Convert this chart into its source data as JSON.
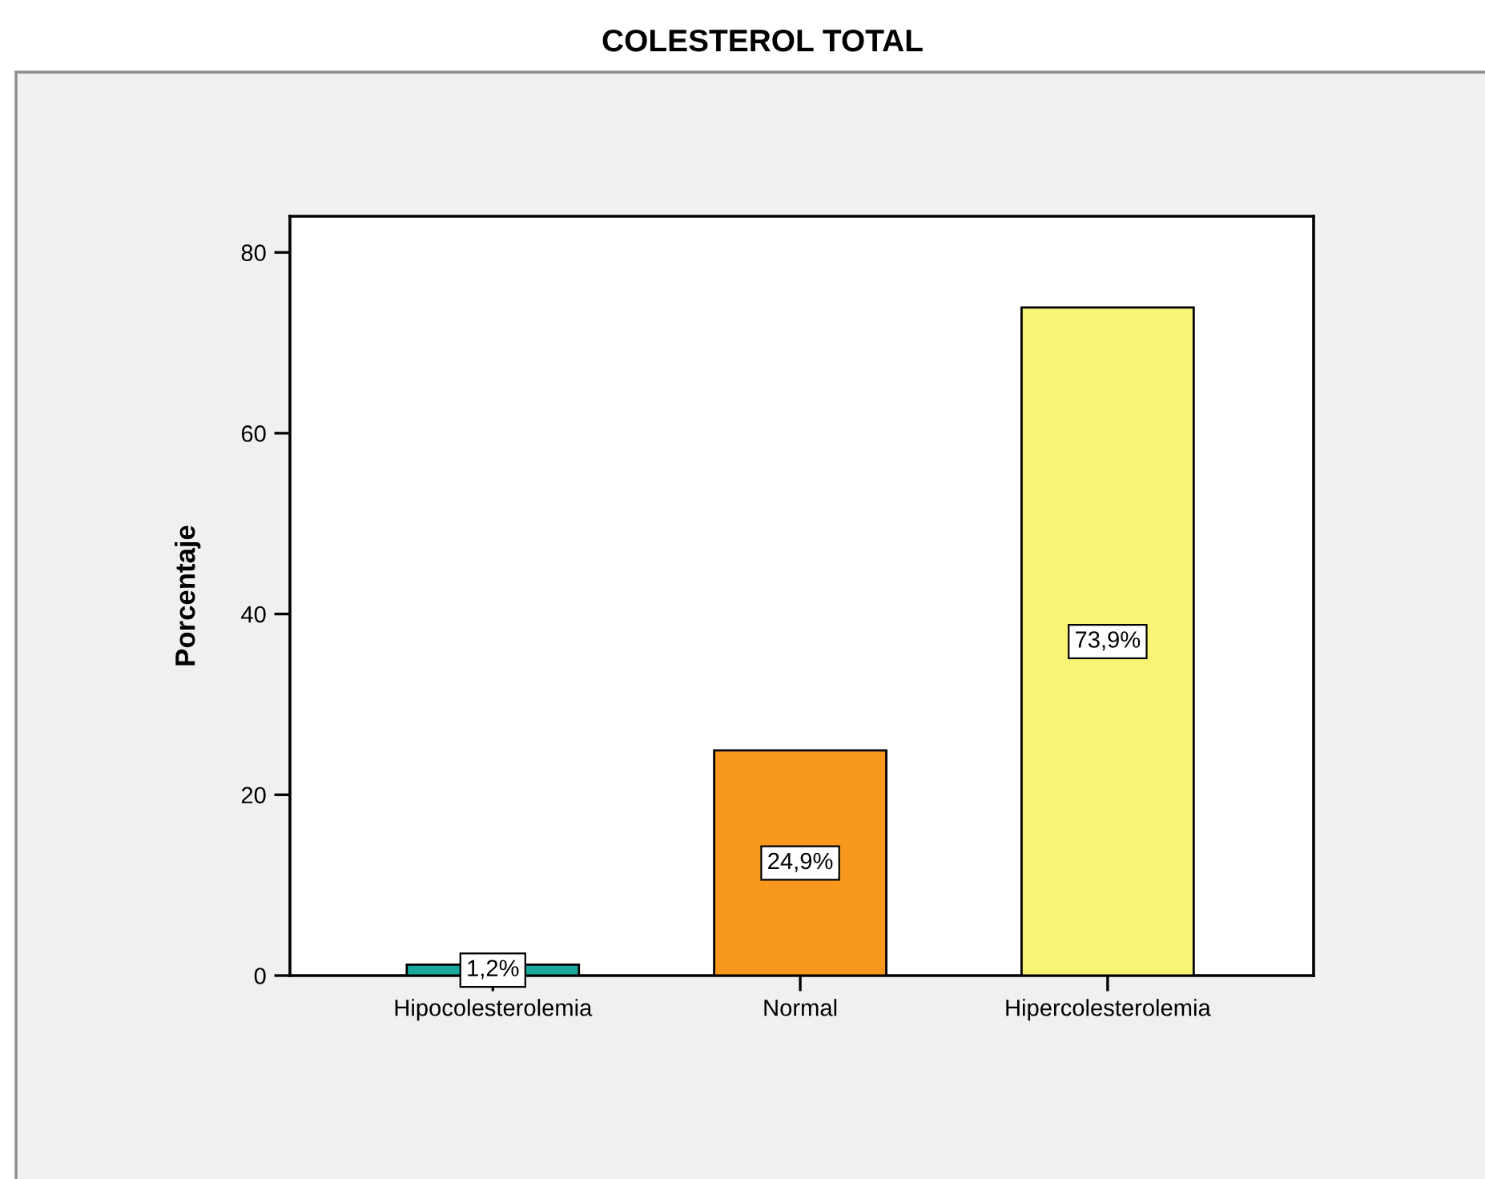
{
  "chart_data": {
    "type": "bar",
    "title": "COLESTEROL TOTAL",
    "ylabel": "Porcentaje",
    "categories": [
      "Hipocolesterolemia",
      "Normal",
      "Hipercolesterolemia"
    ],
    "values": [
      1.2,
      24.9,
      73.9
    ],
    "colors": [
      "#17a89e",
      "#f7981d",
      "#f9f474"
    ],
    "value_labels": [
      "1,2%",
      "24,9%",
      "73,9%"
    ],
    "ylim": [
      0,
      84
    ],
    "yticks": [
      0,
      20,
      40,
      60,
      80
    ]
  }
}
